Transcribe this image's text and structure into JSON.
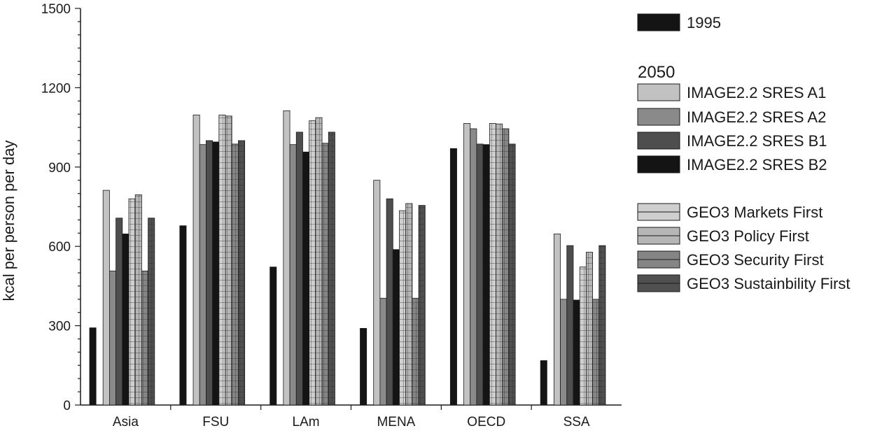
{
  "chart_data": {
    "type": "bar",
    "title": "",
    "xlabel": "",
    "ylabel": "kcal per person per day",
    "ylim": [
      0,
      1500
    ],
    "yticks": [
      0,
      300,
      600,
      900,
      1200,
      1500
    ],
    "grid": false,
    "legend_position": "right",
    "legend_heading_2050": "2050",
    "categories": [
      "Asia",
      "FSU",
      "LAm",
      "MENA",
      "OECD",
      "SSA"
    ],
    "series": [
      {
        "name": "1995",
        "group": "1995",
        "fill": "#141414",
        "pattern": "none",
        "values": [
          292,
          678,
          522,
          290,
          970,
          168
        ]
      },
      {
        "name": "IMAGE2.2 SRES A1",
        "group": "2050",
        "fill": "#c2c2c2",
        "pattern": "none",
        "values": [
          812,
          1097,
          1113,
          850,
          1065,
          647
        ]
      },
      {
        "name": "IMAGE2.2 SRES A2",
        "group": "2050",
        "fill": "#8a8a8a",
        "pattern": "none",
        "values": [
          507,
          985,
          985,
          404,
          1045,
          400
        ]
      },
      {
        "name": "IMAGE2.2 SRES B1",
        "group": "2050",
        "fill": "#4e4e4e",
        "pattern": "none",
        "values": [
          707,
          1000,
          1032,
          780,
          987,
          603
        ]
      },
      {
        "name": "IMAGE2.2 SRES B2",
        "group": "2050",
        "fill": "#141414",
        "pattern": "none",
        "values": [
          647,
          995,
          957,
          588,
          985,
          397
        ]
      },
      {
        "name": "GEO3 Markets First",
        "group": "2050",
        "fill": "#cfcfcf",
        "pattern": "grid",
        "values": [
          780,
          1097,
          1075,
          735,
          1065,
          522
        ]
      },
      {
        "name": "GEO3 Policy First",
        "group": "2050",
        "fill": "#b6b6b6",
        "pattern": "grid",
        "values": [
          795,
          1093,
          1087,
          762,
          1063,
          578
        ]
      },
      {
        "name": "GEO3 Security First",
        "group": "2050",
        "fill": "#858585",
        "pattern": "grid",
        "values": [
          507,
          987,
          990,
          404,
          1045,
          400
        ]
      },
      {
        "name": "GEO3 Sustainbility First",
        "group": "2050",
        "fill": "#505050",
        "pattern": "grid",
        "values": [
          707,
          1000,
          1032,
          755,
          987,
          603
        ]
      }
    ]
  }
}
